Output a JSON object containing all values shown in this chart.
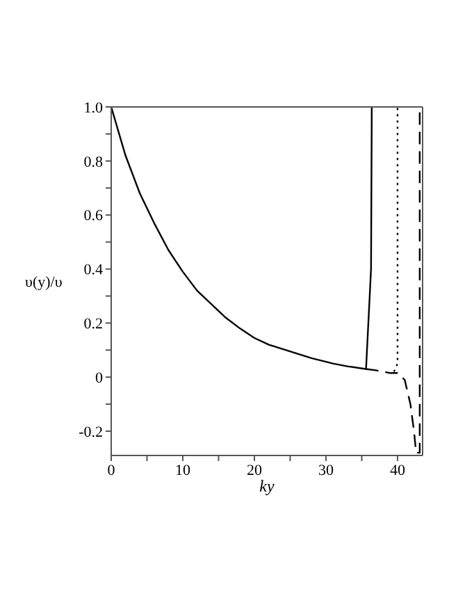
{
  "chart_data": {
    "type": "line",
    "xlabel": "ky",
    "ylabel": "υ(y)/υ",
    "xlim": [
      0,
      43.5
    ],
    "ylim": [
      -0.29,
      1.0
    ],
    "xticks": [
      0,
      {
        "value": 5,
        "label": null
      },
      10,
      {
        "value": 15,
        "label": null
      },
      20,
      {
        "value": 25,
        "label": null
      },
      30,
      {
        "value": 35,
        "label": null
      },
      40
    ],
    "yticks": [
      {
        "value": -0.2,
        "label": "-0.2"
      },
      {
        "value": -0.1,
        "label": null
      },
      0,
      {
        "value": 0.1,
        "label": null
      },
      0.2,
      {
        "value": 0.3,
        "label": null
      },
      0.4,
      {
        "value": 0.5,
        "label": null
      },
      0.6,
      {
        "value": 0.7,
        "label": null
      },
      0.8,
      {
        "value": 0.9,
        "label": null
      },
      {
        "value": 1.0,
        "label": "1.0"
      }
    ],
    "marker": "none",
    "series": [
      {
        "color": "#000000",
        "line_style": "solid",
        "x": [
          0,
          2,
          4,
          6,
          8,
          10,
          12,
          14,
          16,
          18,
          20,
          22,
          25,
          28,
          31,
          33,
          35.6,
          36.3,
          36.4
        ],
        "values": [
          1,
          0.82,
          0.68,
          0.57,
          0.47,
          0.39,
          0.32,
          0.27,
          0.22,
          0.18,
          0.145,
          0.12,
          0.095,
          0.07,
          0.05,
          0.04,
          0.03,
          0.4,
          1.0
        ]
      },
      {
        "color": "#000000",
        "line_style": "dotted",
        "x": [
          39.5,
          40,
          40
        ],
        "values": [
          0.02,
          0.05,
          1.0
        ]
      },
      {
        "color": "#000000",
        "line_style": "dashed",
        "x": [
          35.6,
          37,
          39,
          40,
          41,
          41.8,
          42.3,
          42.6,
          43.1,
          43.1
        ],
        "values": [
          0.03,
          0.025,
          0.015,
          0.015,
          -0.01,
          -0.1,
          -0.2,
          -0.28,
          -0.28,
          1.0
        ]
      }
    ]
  }
}
